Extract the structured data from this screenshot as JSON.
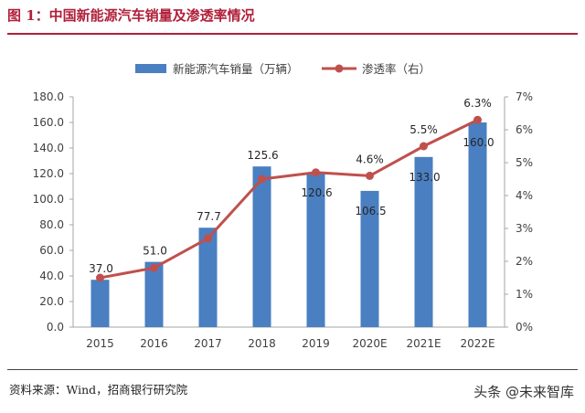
{
  "figure_title": "图 1：中国新能源汽车销量及渗透率情况",
  "source_note": "资料来源：Wind，招商银行研究院",
  "watermark": "头条 @未来智库",
  "chart_data": {
    "type": "bar+line",
    "title": "",
    "categories": [
      "2015",
      "2016",
      "2017",
      "2018",
      "2019",
      "2020E",
      "2021E",
      "2022E"
    ],
    "series": [
      {
        "name": "新能源汽车销量（万辆）",
        "kind": "bar",
        "axis": "left",
        "color": "#4a7fc1",
        "values": [
          37.0,
          51.0,
          77.7,
          125.6,
          120.6,
          106.5,
          133.0,
          160.0
        ],
        "labels": [
          "37.0",
          "51.0",
          "77.7",
          "125.6",
          "120.6",
          "106.5",
          "133.0",
          "160.0"
        ]
      },
      {
        "name": "渗透率（右）",
        "kind": "line",
        "axis": "right",
        "color": "#c0504d",
        "values": [
          1.5,
          1.8,
          2.7,
          4.5,
          4.7,
          4.6,
          5.5,
          6.3
        ],
        "labels": [
          "",
          "",
          "",
          "",
          "",
          "4.6%",
          "5.5%",
          "6.3%"
        ]
      }
    ],
    "y_left": {
      "range": [
        0,
        180
      ],
      "ticks": [
        0,
        20,
        40,
        60,
        80,
        100,
        120,
        140,
        160,
        180
      ],
      "tick_labels": [
        "0.0",
        "20.0",
        "40.0",
        "60.0",
        "80.0",
        "100.0",
        "120.0",
        "140.0",
        "160.0",
        "180.0"
      ]
    },
    "y_right": {
      "range": [
        0,
        7
      ],
      "ticks": [
        0,
        1,
        2,
        3,
        4,
        5,
        6,
        7
      ],
      "tick_labels": [
        "0%",
        "1%",
        "2%",
        "3%",
        "4%",
        "5%",
        "6%",
        "7%"
      ]
    },
    "grid": false,
    "legend": "top-center"
  }
}
